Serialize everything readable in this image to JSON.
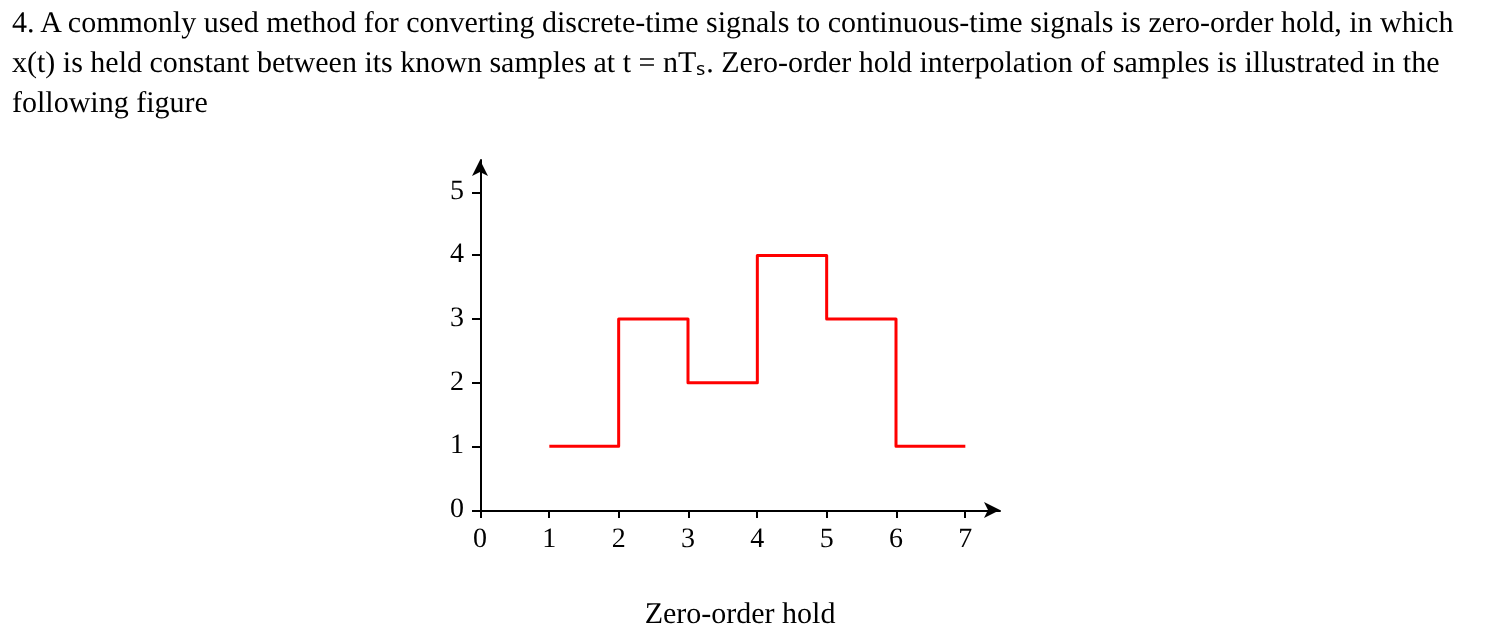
{
  "chart_data": {
    "type": "step",
    "title": "4. A commonly used method for converting discrete-time signals to continuous-time signals is zero-order hold, in which x(t) is held constant between its known samples at t = nTₛ. Zero-order hold interpolation of samples is illustrated in the following figure",
    "x": [
      1,
      2,
      3,
      4,
      5,
      6,
      7
    ],
    "series": [
      {
        "color": "#ff0000",
        "values": [
          1,
          3,
          2,
          4,
          3,
          1,
          1
        ]
      }
    ],
    "xlim": [
      0,
      7.5
    ],
    "xticks": [
      0,
      1,
      2,
      3,
      4,
      5,
      6,
      7
    ],
    "ylim": [
      0,
      5.5
    ],
    "yticks": [
      0,
      1,
      2,
      3,
      4,
      5
    ],
    "xlabel": "Zero-order hold",
    "grid": false,
    "marker": "none",
    "line_style": "solid"
  }
}
